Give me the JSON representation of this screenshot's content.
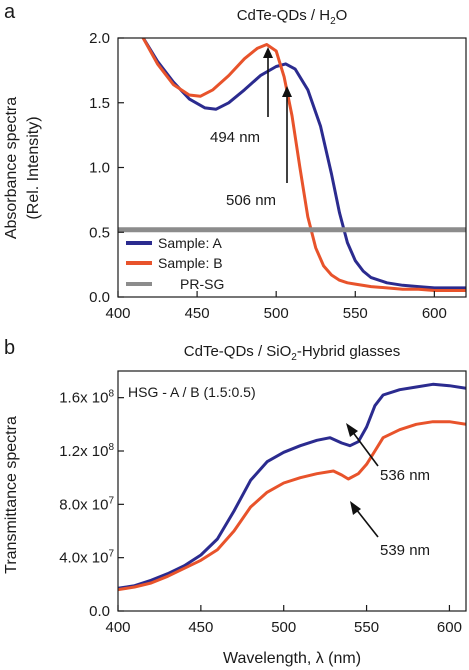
{
  "colors": {
    "sample_a": "#2b2b8f",
    "sample_b": "#e8532b",
    "pr_sg": "#8c8c8c",
    "axis": "#1a1a1a"
  },
  "chart_data": [
    {
      "type": "line",
      "panel": "a",
      "title_parts": [
        "CdTe-QDs / H",
        "2",
        "O"
      ],
      "ylabel_lines": [
        "Absorbance spectra",
        "(Rel. Intensity)"
      ],
      "xlim": [
        400,
        620
      ],
      "ylim": [
        0,
        2.0
      ],
      "xticks": [
        400,
        450,
        500,
        550,
        600
      ],
      "yticks": [
        {
          "v": 0.0,
          "label": "0.0"
        },
        {
          "v": 0.5,
          "label": "0.5"
        },
        {
          "v": 1.0,
          "label": "1.0"
        },
        {
          "v": 1.5,
          "label": "1.5"
        },
        {
          "v": 2.0,
          "label": "2.0"
        }
      ],
      "legend_position": "bottom-left",
      "series": [
        {
          "name": "Sample: A",
          "color_key": "sample_a",
          "x": [
            400,
            415,
            425,
            435,
            445,
            455,
            462,
            470,
            480,
            490,
            500,
            506,
            512,
            520,
            528,
            535,
            540,
            545,
            550,
            555,
            560,
            570,
            580,
            590,
            600,
            610,
            620
          ],
          "y": [
            2.4,
            2.02,
            1.82,
            1.66,
            1.53,
            1.46,
            1.45,
            1.5,
            1.6,
            1.71,
            1.78,
            1.8,
            1.76,
            1.6,
            1.32,
            0.95,
            0.65,
            0.42,
            0.28,
            0.2,
            0.15,
            0.11,
            0.09,
            0.08,
            0.07,
            0.07,
            0.07
          ]
        },
        {
          "name": "Sample: B",
          "color_key": "sample_b",
          "x": [
            400,
            415,
            425,
            435,
            445,
            452,
            460,
            470,
            480,
            488,
            494,
            500,
            505,
            510,
            515,
            520,
            525,
            530,
            535,
            540,
            545,
            550,
            560,
            570,
            580,
            590,
            600,
            610,
            620
          ],
          "y": [
            2.4,
            2.02,
            1.8,
            1.64,
            1.56,
            1.55,
            1.6,
            1.71,
            1.84,
            1.92,
            1.95,
            1.9,
            1.7,
            1.4,
            1.0,
            0.62,
            0.38,
            0.24,
            0.17,
            0.13,
            0.11,
            0.1,
            0.08,
            0.07,
            0.06,
            0.06,
            0.05,
            0.05,
            0.05
          ]
        },
        {
          "name": "PR-SG",
          "color_key": "pr_sg",
          "x": [
            400,
            450,
            500,
            550,
            600,
            620
          ],
          "y": [
            0.52,
            0.52,
            0.52,
            0.52,
            0.52,
            0.52
          ]
        }
      ],
      "annotations": [
        {
          "text": "494 nm",
          "x": 494
        },
        {
          "text": "506 nm",
          "x": 506
        }
      ]
    },
    {
      "type": "line",
      "panel": "b",
      "title_parts": [
        "CdTe-QDs / SiO",
        "2",
        "-Hybrid glasses"
      ],
      "inset_label": "HSG - A / B (1.5:0.5)",
      "ylabel": "Transmittance spectra",
      "xlabel": "Wavelength, λ (nm)",
      "xlim": [
        400,
        610
      ],
      "ylim": [
        0,
        180000000.0
      ],
      "xticks": [
        400,
        450,
        500,
        550,
        600
      ],
      "yticks": [
        {
          "v": 0,
          "label": "0.0"
        },
        {
          "v": 40000000.0,
          "label": "4.0x 10",
          "exp": "7"
        },
        {
          "v": 80000000.0,
          "label": "8.0x 10",
          "exp": "7"
        },
        {
          "v": 120000000.0,
          "label": "1.2x 10",
          "exp": "8"
        },
        {
          "v": 160000000.0,
          "label": "1.6x 10",
          "exp": "8"
        }
      ],
      "series": [
        {
          "name": "A",
          "color_key": "sample_a",
          "x": [
            400,
            410,
            420,
            430,
            440,
            450,
            460,
            470,
            480,
            490,
            500,
            510,
            520,
            528,
            535,
            540,
            545,
            550,
            555,
            560,
            570,
            580,
            590,
            600,
            610
          ],
          "y": [
            17000000.0,
            19000000.0,
            23000000.0,
            28000000.0,
            34000000.0,
            42000000.0,
            54000000.0,
            75000000.0,
            98000000.0,
            112000000.0,
            119000000.0,
            124000000.0,
            128000000.0,
            130000000.0,
            126000000.0,
            124000000.0,
            127000000.0,
            138000000.0,
            154000000.0,
            162000000.0,
            166000000.0,
            168000000.0,
            170000000.0,
            169000000.0,
            167000000.0
          ]
        },
        {
          "name": "B",
          "color_key": "sample_b",
          "x": [
            400,
            410,
            420,
            430,
            440,
            450,
            460,
            470,
            480,
            490,
            500,
            510,
            520,
            530,
            535,
            539,
            545,
            550,
            555,
            560,
            570,
            580,
            590,
            600,
            610
          ],
          "y": [
            16000000.0,
            18000000.0,
            21000000.0,
            26000000.0,
            32000000.0,
            38000000.0,
            46000000.0,
            60000000.0,
            78000000.0,
            89000000.0,
            96000000.0,
            100000000.0,
            103000000.0,
            105000000.0,
            102000000.0,
            99000000.0,
            103000000.0,
            110000000.0,
            120000000.0,
            130000000.0,
            136000000.0,
            140000000.0,
            142000000.0,
            142000000.0,
            140000000.0
          ]
        }
      ],
      "annotations": [
        {
          "text": "536 nm",
          "x": 536
        },
        {
          "text": "539 nm",
          "x": 539
        }
      ]
    }
  ],
  "panel_letters": [
    "a",
    "b"
  ]
}
